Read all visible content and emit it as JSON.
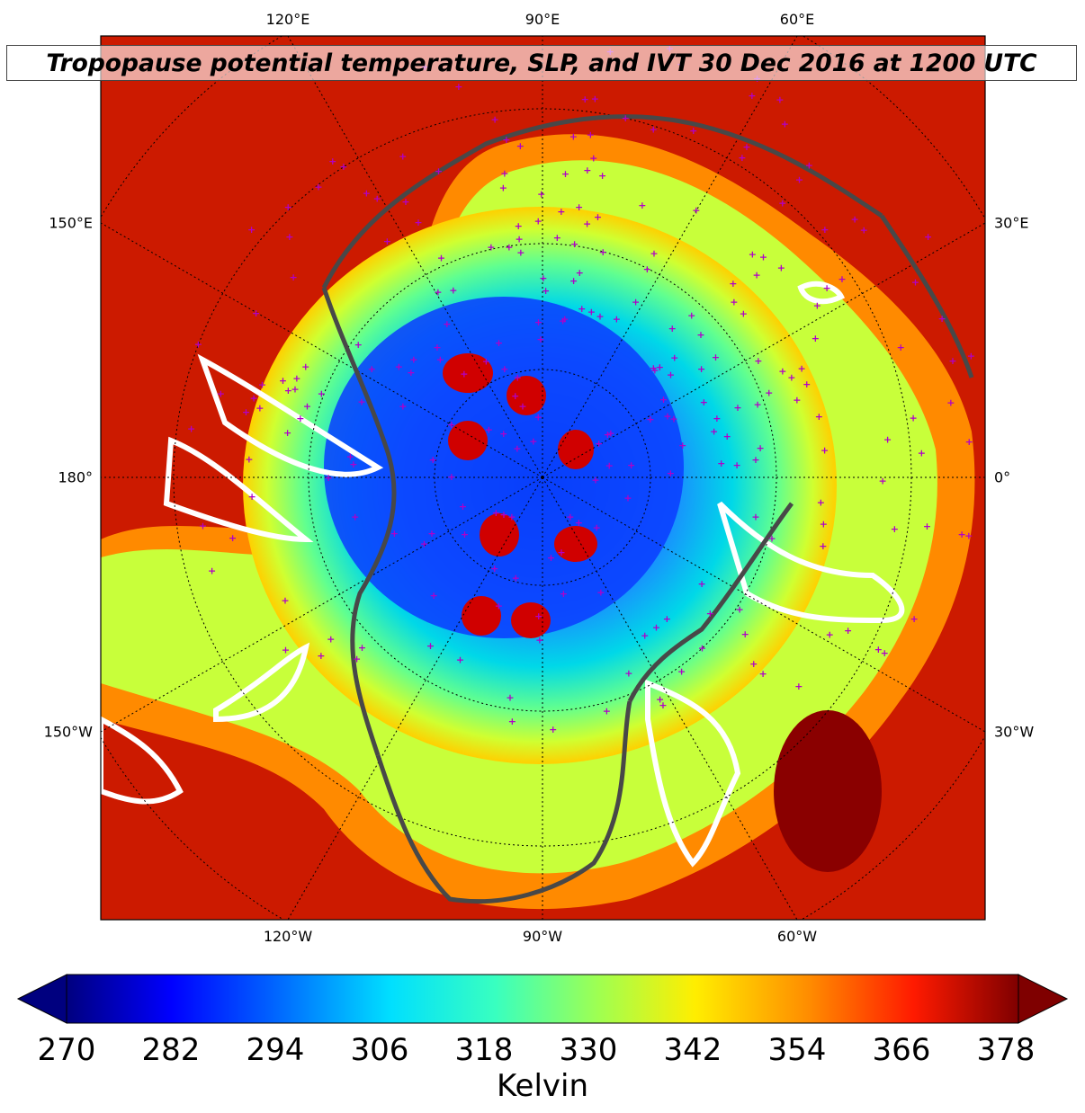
{
  "map": {
    "title": "Tropopause potential temperature, SLP, and IVT 30 Dec 2016 at 1200 UTC",
    "graticule_labels": {
      "top": [
        "120°E",
        "90°E",
        "60°E"
      ],
      "bottom": [
        "120°W",
        "90°W",
        "60°W"
      ],
      "left": [
        "150°E",
        "180°",
        "150°W"
      ],
      "right": [
        "30°E",
        "0°",
        "30°W"
      ]
    },
    "field": "Tropopause potential temperature",
    "overlays": [
      "SLP contours",
      "IVT contours",
      "station markers"
    ],
    "colors": {
      "warm_background": "#cc1a00",
      "station_marker": "#b000c8",
      "coastline": "#484848",
      "ivt_contour": "#ffffff",
      "slp_contour": "#000000"
    }
  },
  "colorbar": {
    "ticks": [
      "270",
      "282",
      "294",
      "306",
      "318",
      "330",
      "342",
      "354",
      "366",
      "378"
    ],
    "label": "Kelvin",
    "colormap": "jet"
  }
}
